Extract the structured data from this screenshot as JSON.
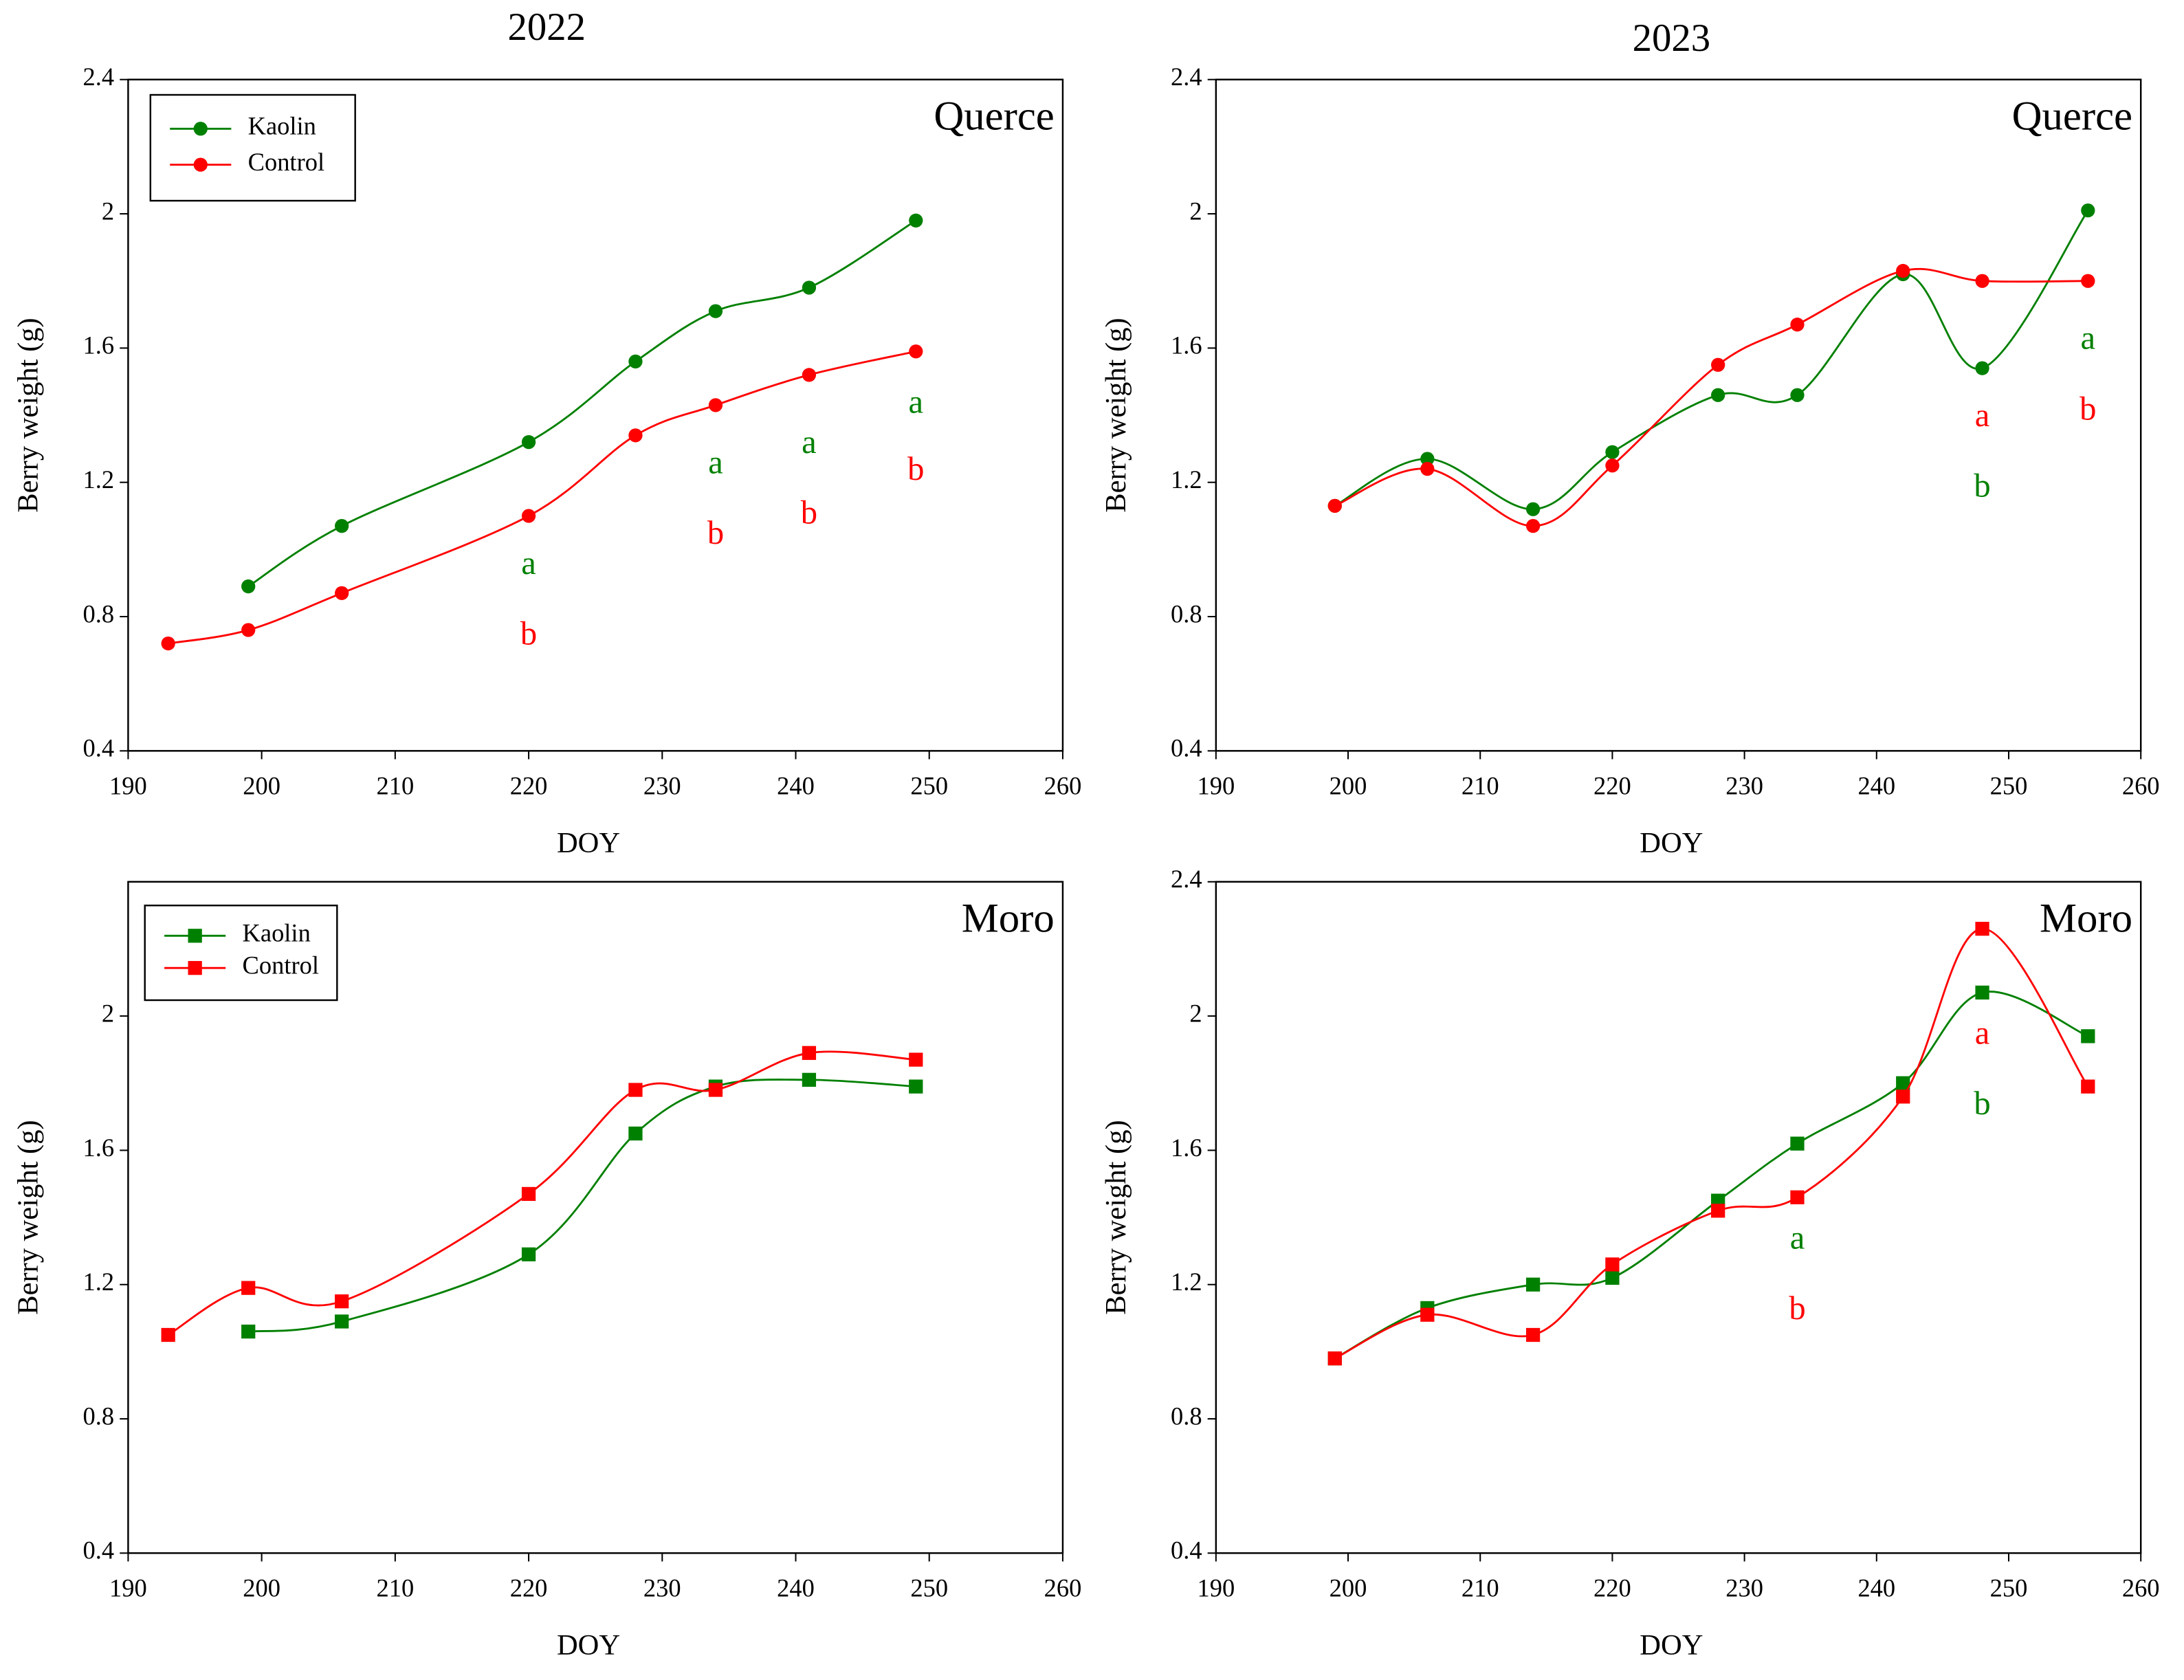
{
  "chart_data": [
    {
      "type": "line",
      "title": "2022",
      "panel_label": "Querce",
      "xlabel": "DOY",
      "ylabel": "Berry weight (g)",
      "marker": "circle",
      "legend": true,
      "xlim": [
        190,
        260
      ],
      "xticks": [
        190,
        200,
        210,
        220,
        230,
        240,
        250,
        260
      ],
      "ylim": [
        0.4,
        2.4
      ],
      "yticks": [
        0.4,
        0.8,
        1.2,
        1.6,
        2.0,
        2.4
      ],
      "series": [
        {
          "name": "Kaolin",
          "color": "#008000",
          "x": [
            199,
            206,
            220,
            228,
            234,
            241,
            249
          ],
          "values": [
            0.89,
            1.07,
            1.32,
            1.56,
            1.71,
            1.78,
            1.98
          ]
        },
        {
          "name": "Control",
          "color": "#ff0000",
          "x": [
            193,
            199,
            206,
            220,
            228,
            234,
            241,
            249
          ],
          "values": [
            0.72,
            0.76,
            0.87,
            1.1,
            1.34,
            1.43,
            1.52,
            1.59
          ]
        }
      ],
      "annotations": [
        {
          "text": "a",
          "x": 220,
          "y": 0.95,
          "color": "#008000"
        },
        {
          "text": "b",
          "x": 220,
          "y": 0.74,
          "color": "#ff0000"
        },
        {
          "text": "a",
          "x": 234,
          "y": 1.25,
          "color": "#008000"
        },
        {
          "text": "b",
          "x": 234,
          "y": 1.04,
          "color": "#ff0000"
        },
        {
          "text": "a",
          "x": 241,
          "y": 1.31,
          "color": "#008000"
        },
        {
          "text": "b",
          "x": 241,
          "y": 1.1,
          "color": "#ff0000"
        },
        {
          "text": "a",
          "x": 249,
          "y": 1.43,
          "color": "#008000"
        },
        {
          "text": "b",
          "x": 249,
          "y": 1.23,
          "color": "#ff0000"
        }
      ]
    },
    {
      "type": "line",
      "title": "2023",
      "panel_label": "Querce",
      "xlabel": "DOY",
      "ylabel": "Berry weight (g)",
      "marker": "circle",
      "legend": false,
      "xlim": [
        190,
        260
      ],
      "xticks": [
        190,
        200,
        210,
        220,
        230,
        240,
        250,
        260
      ],
      "ylim": [
        0.4,
        2.4
      ],
      "yticks": [
        0.4,
        0.8,
        1.2,
        1.6,
        2.0,
        2.4
      ],
      "series": [
        {
          "name": "Kaolin",
          "color": "#008000",
          "x": [
            199,
            206,
            214,
            220,
            228,
            234,
            242,
            248,
            256
          ],
          "values": [
            1.13,
            1.27,
            1.12,
            1.29,
            1.46,
            1.46,
            1.82,
            1.54,
            2.01
          ]
        },
        {
          "name": "Control",
          "color": "#ff0000",
          "x": [
            199,
            206,
            214,
            220,
            228,
            234,
            242,
            248,
            256
          ],
          "values": [
            1.13,
            1.24,
            1.07,
            1.25,
            1.55,
            1.67,
            1.83,
            1.8,
            1.8
          ]
        }
      ],
      "annotations": [
        {
          "text": "a",
          "x": 248,
          "y": 1.39,
          "color": "#ff0000"
        },
        {
          "text": "b",
          "x": 248,
          "y": 1.18,
          "color": "#008000"
        },
        {
          "text": "a",
          "x": 256,
          "y": 1.62,
          "color": "#008000"
        },
        {
          "text": "b",
          "x": 256,
          "y": 1.41,
          "color": "#ff0000"
        }
      ]
    },
    {
      "type": "line",
      "panel_label": "Moro",
      "xlabel": "DOY",
      "ylabel": "Berry weight (g)",
      "marker": "square",
      "legend": true,
      "xlim": [
        190,
        260
      ],
      "xticks": [
        190,
        200,
        210,
        220,
        230,
        240,
        250,
        260
      ],
      "ylim": [
        0.4,
        2.4
      ],
      "yticks": [
        0.4,
        0.8,
        1.2,
        1.6,
        2.0
      ],
      "series": [
        {
          "name": "Kaolin",
          "color": "#008000",
          "x": [
            199,
            206,
            220,
            228,
            234,
            241,
            249
          ],
          "values": [
            1.06,
            1.09,
            1.29,
            1.65,
            1.79,
            1.81,
            1.79
          ]
        },
        {
          "name": "Control",
          "color": "#ff0000",
          "x": [
            193,
            199,
            206,
            220,
            228,
            234,
            241,
            249
          ],
          "values": [
            1.05,
            1.19,
            1.15,
            1.47,
            1.78,
            1.78,
            1.89,
            1.87
          ]
        }
      ],
      "annotations": []
    },
    {
      "type": "line",
      "panel_label": "Moro",
      "xlabel": "DOY",
      "ylabel": "Berry weight (g)",
      "marker": "square",
      "legend": false,
      "xlim": [
        190,
        260
      ],
      "xticks": [
        190,
        200,
        210,
        220,
        230,
        240,
        250,
        260
      ],
      "ylim": [
        0.4,
        2.4
      ],
      "yticks": [
        0.4,
        0.8,
        1.2,
        1.6,
        2.0,
        2.4
      ],
      "series": [
        {
          "name": "Kaolin",
          "color": "#008000",
          "x": [
            199,
            206,
            214,
            220,
            228,
            234,
            242,
            248,
            256
          ],
          "values": [
            0.98,
            1.13,
            1.2,
            1.22,
            1.45,
            1.62,
            1.8,
            2.07,
            1.94
          ]
        },
        {
          "name": "Control",
          "color": "#ff0000",
          "x": [
            199,
            206,
            214,
            220,
            228,
            234,
            242,
            248,
            256
          ],
          "values": [
            0.98,
            1.11,
            1.05,
            1.26,
            1.42,
            1.46,
            1.76,
            2.26,
            1.79
          ]
        }
      ],
      "annotations": [
        {
          "text": "a",
          "x": 234,
          "y": 1.33,
          "color": "#008000"
        },
        {
          "text": "b",
          "x": 234,
          "y": 1.12,
          "color": "#ff0000"
        },
        {
          "text": "a",
          "x": 248,
          "y": 1.94,
          "color": "#ff0000"
        },
        {
          "text": "b",
          "x": 248,
          "y": 1.73,
          "color": "#008000"
        }
      ]
    }
  ]
}
